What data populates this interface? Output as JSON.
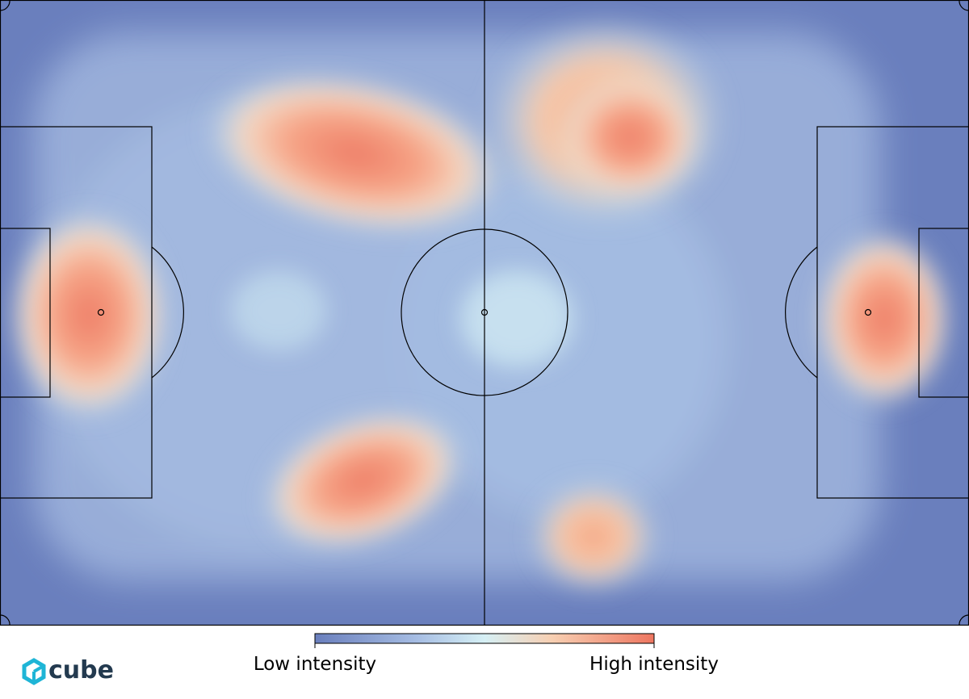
{
  "legend": {
    "low_label": "Low intensity",
    "high_label": "High intensity"
  },
  "logo": {
    "text": "cube"
  }
}
